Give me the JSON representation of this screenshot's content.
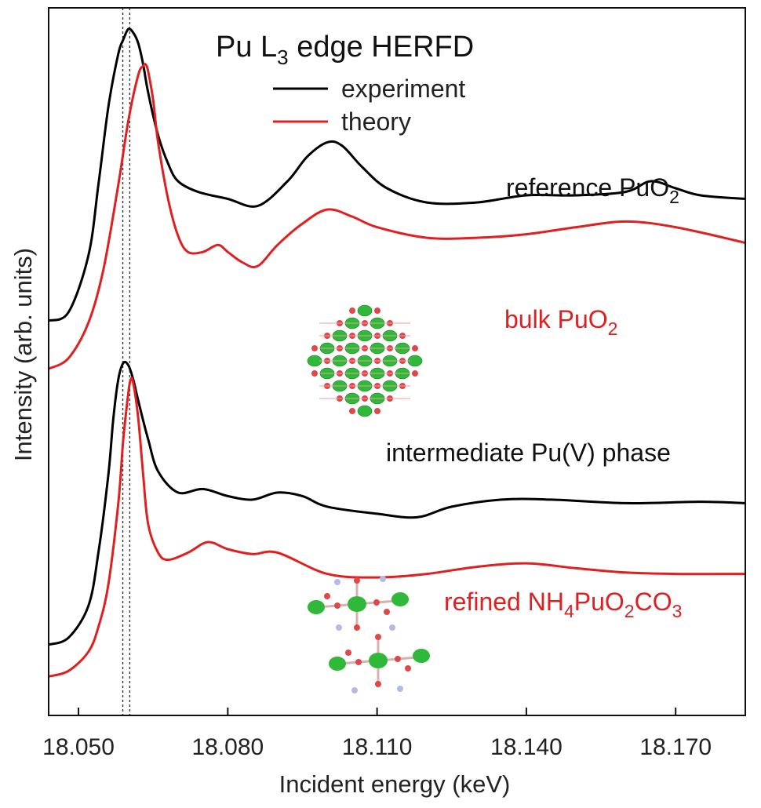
{
  "chart_data": {
    "type": "line",
    "title": "Pu L3 edge HERFD",
    "title_parts": [
      "Pu L",
      "3",
      " edge HERFD"
    ],
    "xlabel": "Incident energy (keV)",
    "ylabel": "Intensity (arb. units)",
    "xlim": [
      18.044,
      18.184
    ],
    "x_ticks": [
      "18.050",
      "18.080",
      "18.110",
      "18.140",
      "18.170"
    ],
    "x_tick_values": [
      18.05,
      18.08,
      18.11,
      18.14,
      18.17
    ],
    "ylim": [
      0,
      10.0
    ],
    "y_ticks_shown": false,
    "legend": {
      "placement": "top-center",
      "entries": [
        {
          "label": "experiment",
          "color": "#000000"
        },
        {
          "label": "theory",
          "color": "#e02020"
        }
      ]
    },
    "reference_lines": [
      18.0589,
      18.0603
    ],
    "series": [
      {
        "name": "reference PuO2",
        "label_parts": [
          "reference PuO",
          "2",
          ""
        ],
        "color": "#000000",
        "x": [
          18.044,
          18.048,
          18.052,
          18.054,
          18.056,
          18.058,
          18.059,
          18.06,
          18.061,
          18.062,
          18.063,
          18.064,
          18.066,
          18.068,
          18.07,
          18.074,
          18.08,
          18.086,
          18.092,
          18.096,
          18.1,
          18.103,
          18.107,
          18.112,
          18.12,
          18.13,
          18.14,
          18.15,
          18.16,
          18.165,
          18.17,
          18.175,
          18.184
        ],
        "y": [
          5.58,
          5.7,
          6.5,
          7.5,
          8.6,
          9.35,
          9.55,
          9.7,
          9.65,
          9.5,
          9.2,
          8.8,
          8.2,
          7.8,
          7.55,
          7.4,
          7.3,
          7.2,
          7.55,
          7.9,
          8.1,
          8.05,
          7.75,
          7.45,
          7.25,
          7.25,
          7.35,
          7.35,
          7.4,
          7.55,
          7.45,
          7.35,
          7.3
        ]
      },
      {
        "name": "bulk PuO2",
        "label_parts": [
          "bulk PuO",
          "2",
          ""
        ],
        "color": "#e02020",
        "x": [
          18.044,
          18.048,
          18.052,
          18.055,
          18.058,
          18.06,
          18.062,
          18.063,
          18.0635,
          18.064,
          18.065,
          18.066,
          18.068,
          18.07,
          18.072,
          18.075,
          18.078,
          18.08,
          18.083,
          18.086,
          18.09,
          18.095,
          18.1,
          18.105,
          18.11,
          18.12,
          18.13,
          18.14,
          18.15,
          18.16,
          18.17,
          18.184
        ],
        "y": [
          4.9,
          5.05,
          5.55,
          6.3,
          7.5,
          8.4,
          9.05,
          9.18,
          9.2,
          9.1,
          8.7,
          8.1,
          7.3,
          6.78,
          6.55,
          6.55,
          6.65,
          6.55,
          6.4,
          6.35,
          6.65,
          6.95,
          7.15,
          7.05,
          6.9,
          6.75,
          6.75,
          6.8,
          6.9,
          6.98,
          6.9,
          6.68
        ]
      },
      {
        "name": "intermediate Pu(V) phase",
        "label_parts": [
          "intermediate Pu(V) phase",
          "",
          ""
        ],
        "color": "#000000",
        "x": [
          18.044,
          18.048,
          18.052,
          18.054,
          18.056,
          18.057,
          18.058,
          18.059,
          18.06,
          18.061,
          18.062,
          18.064,
          18.066,
          18.07,
          18.075,
          18.08,
          18.085,
          18.09,
          18.095,
          18.1,
          18.11,
          18.118,
          18.125,
          18.135,
          18.145,
          18.16,
          18.175,
          18.184
        ],
        "y": [
          1.0,
          1.1,
          1.55,
          2.3,
          3.4,
          4.2,
          4.75,
          4.98,
          4.95,
          4.75,
          4.45,
          3.9,
          3.45,
          3.15,
          3.2,
          3.1,
          3.05,
          3.15,
          3.1,
          2.95,
          2.85,
          2.8,
          2.95,
          3.05,
          3.05,
          3.0,
          3.02,
          3.0
        ]
      },
      {
        "name": "refined NH4PuO2CO3",
        "label_parts": [
          "refined NH",
          "4",
          "PuO",
          "2",
          "CO",
          "3"
        ],
        "color": "#e02020",
        "x": [
          18.044,
          18.048,
          18.052,
          18.054,
          18.056,
          18.058,
          18.059,
          18.06,
          18.0605,
          18.061,
          18.062,
          18.063,
          18.064,
          18.066,
          18.068,
          18.072,
          18.076,
          18.08,
          18.085,
          18.09,
          18.1,
          18.11,
          18.12,
          18.13,
          18.14,
          18.15,
          18.16,
          18.17,
          18.184
        ],
        "y": [
          0.55,
          0.63,
          0.9,
          1.25,
          1.85,
          3.0,
          3.9,
          4.55,
          4.75,
          4.7,
          4.2,
          3.4,
          2.7,
          2.3,
          2.2,
          2.3,
          2.45,
          2.35,
          2.28,
          2.3,
          2.0,
          1.95,
          2.0,
          2.1,
          2.15,
          2.08,
          2.02,
          2.0,
          2.0
        ]
      }
    ]
  }
}
